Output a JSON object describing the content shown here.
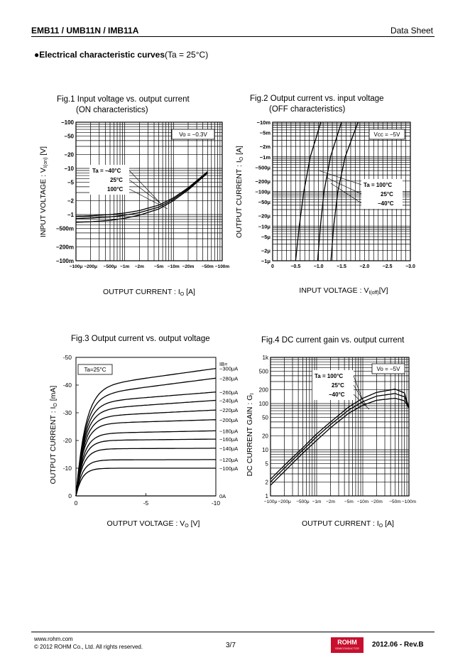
{
  "header": {
    "title": "EMB11 / UMB11N / IMB11A",
    "doc_type": "Data Sheet"
  },
  "section": {
    "bullet": "●",
    "title": "Electrical characteristic curves",
    "condition": "(Ta = 25°C)"
  },
  "footer": {
    "url": "www.rohm.com",
    "copyright": "© 2012  ROHM Co., Ltd. All rights reserved.",
    "page": "3/7",
    "revision": "2012.06 -  Rev.B",
    "logo_text": "ROHM",
    "logo_subtext": "SEMICONDUCTOR"
  },
  "chart_data": [
    {
      "type": "line",
      "title": "Fig.1 Input voltage vs. output current",
      "subtitle": "(ON characteristics)",
      "xlabel": "OUTPUT CURRENT : I",
      "xlabel_sub": "O",
      "xlabel_unit": " [A]",
      "ylabel": "INPUT VOLTAGE : V",
      "ylabel_sub": "I(on)",
      "ylabel_unit": " [V]",
      "xscale": "log",
      "yscale": "log",
      "xlim": [
        0.0001,
        0.1
      ],
      "ylim": [
        0.1,
        100
      ],
      "x_ticks": [
        {
          "v": 0.0001,
          "l": "−100μ"
        },
        {
          "v": 0.0002,
          "l": "−200μ"
        },
        {
          "v": 0.0005,
          "l": "−500μ"
        },
        {
          "v": 0.001,
          "l": "−1m"
        },
        {
          "v": 0.002,
          "l": "−2m"
        },
        {
          "v": 0.005,
          "l": "−5m"
        },
        {
          "v": 0.01,
          "l": "−10m"
        },
        {
          "v": 0.02,
          "l": "−20m"
        },
        {
          "v": 0.05,
          "l": "−50m"
        },
        {
          "v": 0.1,
          "l": "−100m"
        }
      ],
      "y_ticks": [
        {
          "v": 100,
          "l": "−100"
        },
        {
          "v": 50,
          "l": "−50"
        },
        {
          "v": 20,
          "l": "−20"
        },
        {
          "v": 10,
          "l": "−10"
        },
        {
          "v": 5,
          "l": "−5"
        },
        {
          "v": 2,
          "l": "−2"
        },
        {
          "v": 1,
          "l": "−1"
        },
        {
          "v": 0.5,
          "l": "−500m"
        },
        {
          "v": 0.2,
          "l": "−200m"
        },
        {
          "v": 0.1,
          "l": "−100m"
        }
      ],
      "condition_label": "Vo = −0.3V",
      "legend_labels": [
        "Ta = −40°C",
        "25°C",
        "100°C"
      ],
      "series": [
        {
          "values": [
            [
              0.0001,
              0.92
            ],
            [
              0.0002,
              0.94
            ],
            [
              0.0005,
              1.0
            ],
            [
              0.001,
              1.08
            ],
            [
              0.002,
              1.22
            ],
            [
              0.005,
              1.6
            ],
            [
              0.01,
              2.3
            ],
            [
              0.02,
              3.8
            ],
            [
              0.05,
              8.5
            ]
          ]
        },
        {
          "values": [
            [
              0.0001,
              0.82
            ],
            [
              0.0002,
              0.84
            ],
            [
              0.0005,
              0.89
            ],
            [
              0.001,
              0.97
            ],
            [
              0.002,
              1.1
            ],
            [
              0.005,
              1.45
            ],
            [
              0.01,
              2.15
            ],
            [
              0.02,
              3.6
            ],
            [
              0.05,
              8.2
            ]
          ]
        },
        {
          "values": [
            [
              0.0001,
              0.68
            ],
            [
              0.0002,
              0.7
            ],
            [
              0.0005,
              0.75
            ],
            [
              0.001,
              0.83
            ],
            [
              0.002,
              0.97
            ],
            [
              0.005,
              1.32
            ],
            [
              0.01,
              2.0
            ],
            [
              0.02,
              3.4
            ],
            [
              0.05,
              7.9
            ]
          ]
        }
      ]
    },
    {
      "type": "line",
      "title": "Fig.2 Output current vs. input voltage",
      "subtitle": "(OFF characteristics)",
      "xlabel": "INPUT VOLTAGE : V",
      "xlabel_sub": "I(off)",
      "xlabel_unit": "[V]",
      "ylabel": "OUTPUT CURRENT : I",
      "ylabel_sub": "O",
      "ylabel_unit": " [A]",
      "xscale": "linear",
      "yscale": "log",
      "xlim": [
        0,
        3.0
      ],
      "ylim": [
        1e-06,
        0.01
      ],
      "x_ticks": [
        {
          "v": 0,
          "l": "0"
        },
        {
          "v": 0.5,
          "l": "−0.5"
        },
        {
          "v": 1.0,
          "l": "−1.0"
        },
        {
          "v": 1.5,
          "l": "−1.5"
        },
        {
          "v": 2.0,
          "l": "−2.0"
        },
        {
          "v": 2.5,
          "l": "−2.5"
        },
        {
          "v": 3.0,
          "l": "−3.0"
        }
      ],
      "y_ticks": [
        {
          "v": 0.01,
          "l": "−10m"
        },
        {
          "v": 0.005,
          "l": "−5m"
        },
        {
          "v": 0.002,
          "l": "−2m"
        },
        {
          "v": 0.001,
          "l": "−1m"
        },
        {
          "v": 0.0005,
          "l": "−500μ"
        },
        {
          "v": 0.0002,
          "l": "−200μ"
        },
        {
          "v": 0.0001,
          "l": "−100μ"
        },
        {
          "v": 5e-05,
          "l": "−50μ"
        },
        {
          "v": 2e-05,
          "l": "−20μ"
        },
        {
          "v": 1e-05,
          "l": "−10μ"
        },
        {
          "v": 5e-06,
          "l": "−5μ"
        },
        {
          "v": 2e-06,
          "l": "−2μ"
        },
        {
          "v": 1e-06,
          "l": "−1μ"
        }
      ],
      "condition_label": "Vcc = −5V",
      "legend_labels": [
        "Ta = 100°C",
        "25°C",
        "−40°C"
      ],
      "series": [
        {
          "values": [
            [
              0.5,
              1e-06
            ],
            [
              0.58,
              1e-05
            ],
            [
              0.68,
              0.0001
            ],
            [
              0.82,
              0.001
            ],
            [
              1.05,
              0.01
            ]
          ]
        },
        {
          "values": [
            [
              0.98,
              1e-06
            ],
            [
              1.04,
              1e-05
            ],
            [
              1.12,
              0.0001
            ],
            [
              1.26,
              0.001
            ],
            [
              1.5,
              0.01
            ]
          ]
        },
        {
          "values": [
            [
              1.27,
              1e-06
            ],
            [
              1.33,
              1e-05
            ],
            [
              1.42,
              0.0001
            ],
            [
              1.58,
              0.001
            ],
            [
              1.86,
              0.01
            ]
          ]
        }
      ]
    },
    {
      "type": "line",
      "title": "Fig.3 Output current  vs. output voltage",
      "xlabel": "OUTPUT VOLTAGE : V",
      "xlabel_sub": "O",
      "xlabel_unit": " [V]",
      "ylabel": "OUTPUT CURRENT : I",
      "ylabel_sub": "O",
      "ylabel_unit": " [mA]",
      "xscale": "linear",
      "yscale": "linear",
      "xlim": [
        0,
        10
      ],
      "ylim": [
        0,
        50
      ],
      "x_ticks": [
        {
          "v": 0,
          "l": "0"
        },
        {
          "v": 5,
          "l": "-5"
        },
        {
          "v": 10,
          "l": "-10"
        }
      ],
      "y_ticks": [
        {
          "v": 0,
          "l": "0"
        },
        {
          "v": 10,
          "l": "-10"
        },
        {
          "v": 20,
          "l": "-20"
        },
        {
          "v": 30,
          "l": "-30"
        },
        {
          "v": 40,
          "l": "-40"
        },
        {
          "v": 50,
          "l": "-50"
        }
      ],
      "condition_label": "Ta=25°C",
      "legend_title": "IB=",
      "series": [
        {
          "name": "−300μA",
          "sat": 39,
          "end": 46
        },
        {
          "name": "−280μA",
          "sat": 36,
          "end": 42.5
        },
        {
          "name": "−260μA",
          "sat": 33.5,
          "end": 37.5
        },
        {
          "name": "−240μA",
          "sat": 31,
          "end": 34.5
        },
        {
          "name": "−220μA",
          "sat": 28.5,
          "end": 31
        },
        {
          "name": "−200μA",
          "sat": 26,
          "end": 27.5
        },
        {
          "name": "−180μA",
          "sat": 22.5,
          "end": 23.5
        },
        {
          "name": "−160μA",
          "sat": 20,
          "end": 20.5
        },
        {
          "name": "−140μA",
          "sat": 17,
          "end": 17.2
        },
        {
          "name": "−120μA",
          "sat": 13,
          "end": 13.1
        },
        {
          "name": "−100μA",
          "sat": 10,
          "end": 10.0
        },
        {
          "name": "0A",
          "sat": 0,
          "end": 0
        }
      ]
    },
    {
      "type": "line",
      "title": "Fig.4 DC current gain vs. output current",
      "xlabel": "OUTPUT CURRENT : I",
      "xlabel_sub": "O",
      "xlabel_unit": " [A]",
      "ylabel": "DC CURRENT GAIN : G",
      "ylabel_sub": "I",
      "ylabel_unit": "",
      "xscale": "log",
      "yscale": "log",
      "xlim": [
        0.0001,
        0.1
      ],
      "ylim": [
        1,
        1000
      ],
      "x_ticks": [
        {
          "v": 0.0001,
          "l": "−100μ"
        },
        {
          "v": 0.0002,
          "l": "−200μ"
        },
        {
          "v": 0.0005,
          "l": "−500μ"
        },
        {
          "v": 0.001,
          "l": "−1m"
        },
        {
          "v": 0.002,
          "l": "−2m"
        },
        {
          "v": 0.005,
          "l": "−5m"
        },
        {
          "v": 0.01,
          "l": "−10m"
        },
        {
          "v": 0.02,
          "l": "−20m"
        },
        {
          "v": 0.05,
          "l": "−50m"
        },
        {
          "v": 0.1,
          "l": "−100m"
        }
      ],
      "y_ticks": [
        {
          "v": 1000,
          "l": "1k"
        },
        {
          "v": 500,
          "l": "500"
        },
        {
          "v": 200,
          "l": "200"
        },
        {
          "v": 100,
          "l": "100"
        },
        {
          "v": 50,
          "l": "50"
        },
        {
          "v": 20,
          "l": "20"
        },
        {
          "v": 10,
          "l": "10"
        },
        {
          "v": 5,
          "l": "5"
        },
        {
          "v": 2,
          "l": "2"
        },
        {
          "v": 1,
          "l": "1"
        }
      ],
      "condition_label": "Vo = −5V",
      "legend_labels": [
        "Ta = 100°C",
        "25°C",
        "−40°C"
      ],
      "series": [
        {
          "values": [
            [
              0.0001,
              2.3
            ],
            [
              0.0002,
              4.6
            ],
            [
              0.0005,
              11
            ],
            [
              0.001,
              22
            ],
            [
              0.002,
              40
            ],
            [
              0.005,
              85
            ],
            [
              0.01,
              130
            ],
            [
              0.02,
              175
            ],
            [
              0.05,
              205
            ],
            [
              0.08,
              170
            ],
            [
              0.1,
              80
            ]
          ]
        },
        {
          "values": [
            [
              0.0001,
              2.0
            ],
            [
              0.0002,
              4.0
            ],
            [
              0.0005,
              9.8
            ],
            [
              0.001,
              19
            ],
            [
              0.002,
              35
            ],
            [
              0.005,
              73
            ],
            [
              0.01,
              110
            ],
            [
              0.02,
              145
            ],
            [
              0.05,
              165
            ],
            [
              0.08,
              140
            ],
            [
              0.1,
              80
            ]
          ]
        },
        {
          "values": [
            [
              0.0001,
              1.7
            ],
            [
              0.0002,
              3.4
            ],
            [
              0.0005,
              8.4
            ],
            [
              0.001,
              16
            ],
            [
              0.002,
              30
            ],
            [
              0.005,
              62
            ],
            [
              0.01,
              92
            ],
            [
              0.02,
              118
            ],
            [
              0.05,
              130
            ],
            [
              0.08,
              115
            ],
            [
              0.1,
              80
            ]
          ]
        }
      ]
    }
  ]
}
